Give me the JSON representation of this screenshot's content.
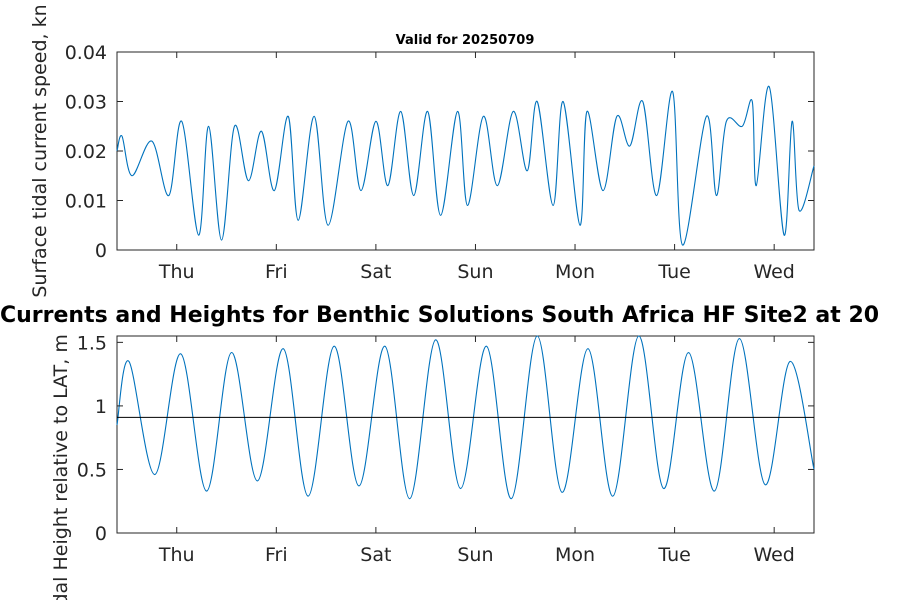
{
  "colors": {
    "series": "#0072BD",
    "reference": "#000000",
    "axis": "#262626"
  },
  "main_title": "Currents and Heights for Benthic Solutions South Africa HF Site2 at 20",
  "chart_data": [
    {
      "type": "line",
      "title": "Valid for 20250709",
      "ylabel": "Surface tidal current speed, kn",
      "xlabel": "",
      "x_tick_labels": [
        "Thu",
        "Fri",
        "Sat",
        "Sun",
        "Mon",
        "Tue",
        "Wed"
      ],
      "xlim_days": [
        0,
        7
      ],
      "ylim": [
        0,
        0.04
      ],
      "y_ticks": [
        0,
        0.01,
        0.02,
        0.03,
        0.04
      ],
      "y_tick_labels": [
        "0",
        "0.01",
        "0.02",
        "0.03",
        "0.04"
      ],
      "grid": false,
      "series": [
        {
          "x_days": [
            0,
            0.05,
            0.15,
            0.35,
            0.52,
            0.65,
            0.82,
            0.92,
            1.05,
            1.18,
            1.32,
            1.45,
            1.58,
            1.72,
            1.82,
            1.98,
            2.12,
            2.32,
            2.45,
            2.6,
            2.72,
            2.85,
            2.98,
            3.12,
            3.25,
            3.42,
            3.52,
            3.68,
            3.82,
            3.98,
            4.12,
            4.22,
            4.38,
            4.48,
            4.65,
            4.72,
            4.88,
            5.02,
            5.15,
            5.28,
            5.42,
            5.58,
            5.68,
            5.92,
            6.02,
            6.12,
            6.28,
            6.38,
            6.42,
            6.55,
            6.7,
            6.78,
            6.85,
            7.0
          ],
          "y": [
            0.02,
            0.023,
            0.015,
            0.022,
            0.011,
            0.026,
            0.003,
            0.025,
            0.002,
            0.025,
            0.014,
            0.024,
            0.012,
            0.027,
            0.006,
            0.027,
            0.005,
            0.026,
            0.012,
            0.026,
            0.013,
            0.028,
            0.011,
            0.028,
            0.007,
            0.028,
            0.009,
            0.027,
            0.013,
            0.028,
            0.016,
            0.03,
            0.009,
            0.03,
            0.005,
            0.028,
            0.012,
            0.027,
            0.021,
            0.03,
            0.011,
            0.032,
            0.001,
            0.027,
            0.011,
            0.026,
            0.025,
            0.03,
            0.013,
            0.033,
            0.003,
            0.026,
            0.008,
            0.017
          ]
        }
      ]
    },
    {
      "type": "line",
      "title": "",
      "ylabel": "Tidal Height relative to LAT, m",
      "xlabel": "",
      "x_tick_labels": [
        "Thu",
        "Fri",
        "Sat",
        "Sun",
        "Mon",
        "Tue",
        "Wed"
      ],
      "xlim_days": [
        0,
        7
      ],
      "ylim": [
        0,
        1.55
      ],
      "y_ticks": [
        0,
        0.5,
        1,
        1.5
      ],
      "y_tick_labels": [
        "0",
        "0.5",
        "1",
        "1.5"
      ],
      "grid": false,
      "reference_line": 0.91,
      "series": [
        {
          "x_days": [
            0,
            0.12,
            0.38,
            0.64,
            0.9,
            1.15,
            1.41,
            1.67,
            1.92,
            2.18,
            2.43,
            2.69,
            2.94,
            3.2,
            3.45,
            3.71,
            3.96,
            4.22,
            4.47,
            4.73,
            4.98,
            5.24,
            5.49,
            5.74,
            6.0,
            6.25,
            6.51,
            6.76,
            7.0
          ],
          "y": [
            0.85,
            1.35,
            0.46,
            1.41,
            0.33,
            1.42,
            0.41,
            1.45,
            0.29,
            1.47,
            0.37,
            1.47,
            0.27,
            1.52,
            0.35,
            1.47,
            0.27,
            1.55,
            0.32,
            1.45,
            0.29,
            1.55,
            0.35,
            1.42,
            0.33,
            1.53,
            0.38,
            1.35,
            0.5
          ]
        }
      ]
    }
  ]
}
